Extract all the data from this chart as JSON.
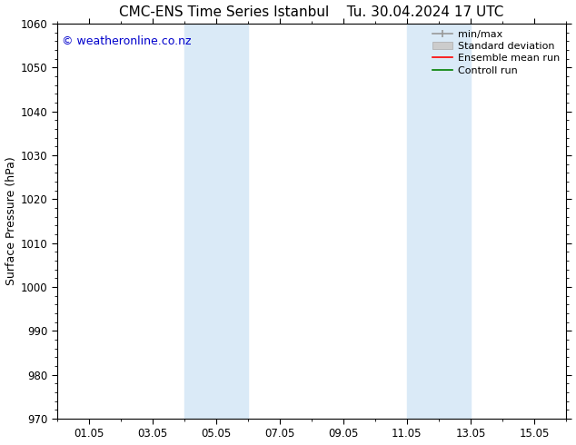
{
  "title_left": "CMC-ENS Time Series Istanbul",
  "title_right": "Tu. 30.04.2024 17 UTC",
  "ylabel": "Surface Pressure (hPa)",
  "ylim": [
    970,
    1060
  ],
  "yticks": [
    970,
    980,
    990,
    1000,
    1010,
    1020,
    1030,
    1040,
    1050,
    1060
  ],
  "xtick_labels": [
    "01.05",
    "03.05",
    "05.05",
    "07.05",
    "09.05",
    "11.05",
    "13.05",
    "15.05"
  ],
  "xtick_positions": [
    1,
    3,
    5,
    7,
    9,
    11,
    13,
    15
  ],
  "xmin": 0,
  "xmax": 16,
  "shaded_bands": [
    {
      "x_start": 4,
      "x_end": 6
    },
    {
      "x_start": 11,
      "x_end": 13
    }
  ],
  "shade_color": "#daeaf7",
  "background_color": "#ffffff",
  "watermark_text": "© weatheronline.co.nz",
  "watermark_color": "#0000cc",
  "legend_items": [
    {
      "label": "min/max",
      "color": "#aaaaaa",
      "lw": 1.5,
      "linestyle": "-"
    },
    {
      "label": "Standard deviation",
      "color": "#cccccc",
      "lw": 6,
      "linestyle": "-"
    },
    {
      "label": "Ensemble mean run",
      "color": "#ff0000",
      "lw": 1.5,
      "linestyle": "-"
    },
    {
      "label": "Controll run",
      "color": "#008000",
      "lw": 1.5,
      "linestyle": "-"
    }
  ],
  "title_fontsize": 11,
  "axis_label_fontsize": 9,
  "tick_fontsize": 8.5,
  "watermark_fontsize": 9,
  "legend_fontsize": 8
}
